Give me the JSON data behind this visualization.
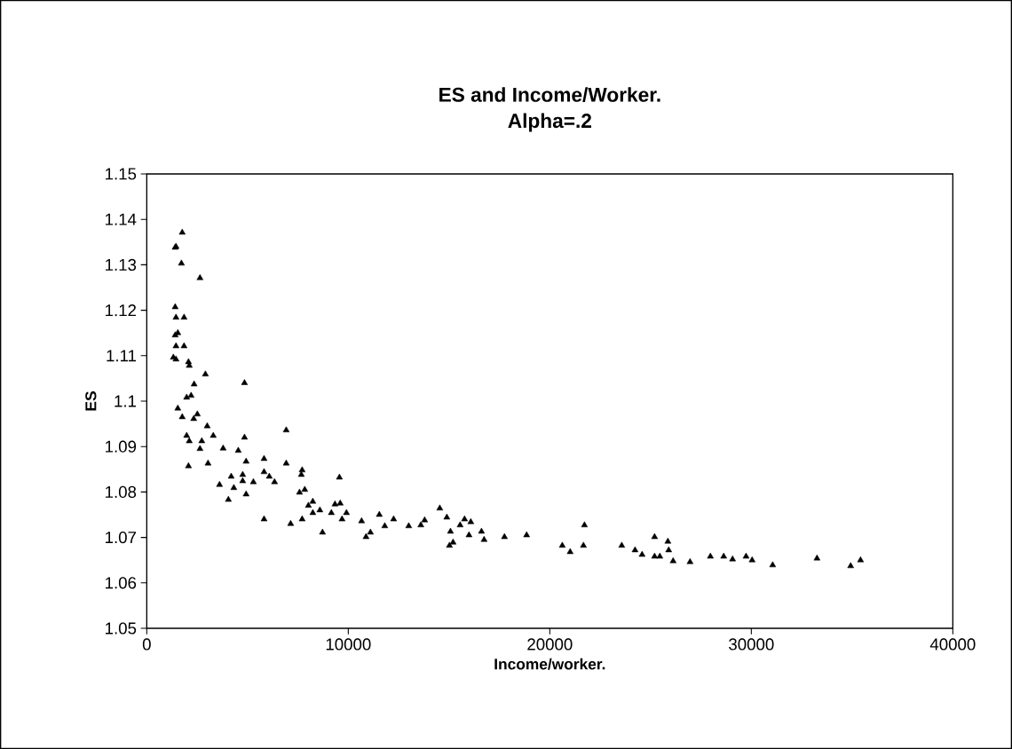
{
  "chart_data": {
    "type": "scatter",
    "title": "ES and Income/Worker.",
    "subtitle": "Alpha=.2",
    "xlabel": "Income/worker.",
    "ylabel": "ES",
    "marker": "triangle",
    "xlim": [
      0,
      40000
    ],
    "ylim": [
      1.05,
      1.15
    ],
    "xticks": [
      0,
      10000,
      20000,
      30000,
      40000
    ],
    "yticks": [
      1.05,
      1.06,
      1.07,
      1.08,
      1.09,
      {
        "value": 1.1,
        "label": "1.1"
      },
      1.11,
      1.12,
      1.13,
      1.14,
      1.15
    ],
    "series": [
      {
        "color": "#000000",
        "x": [
          1760,
          1450,
          1410,
          1720,
          2640,
          1410,
          1450,
          1850,
          1540,
          1410,
          1450,
          1850,
          1320,
          1450,
          2070,
          2110,
          2910,
          4850,
          2350,
          1980,
          2200,
          1540,
          1760,
          2510,
          2330,
          3000,
          1980,
          2730,
          2110,
          2640,
          3300,
          3790,
          4850,
          4540,
          6920,
          4930,
          5820,
          6920,
          2070,
          3040,
          5820,
          6080,
          6340,
          7710,
          7670,
          4190,
          4760,
          4760,
          5290,
          3610,
          4320,
          9560,
          7840,
          7580,
          4050,
          4930,
          8240,
          8020,
          8590,
          9340,
          9600,
          9160,
          9910,
          8240,
          9690,
          5820,
          7140,
          7710,
          10660,
          11540,
          12250,
          11810,
          11100,
          10880,
          8720,
          13000,
          13600,
          13790,
          14540,
          14890,
          15070,
          15200,
          15020,
          15550,
          15770,
          16080,
          15990,
          16610,
          16740,
          17750,
          18850,
          20620,
          21010,
          21670,
          21720,
          23570,
          24230,
          24580,
          25200,
          25200,
          25460,
          25860,
          25900,
          26120,
          26960,
          27970,
          28630,
          29070,
          29740,
          30040,
          31060,
          33260,
          34930,
          35420
        ],
        "values": [
          1.1371,
          1.134,
          1.1338,
          1.1303,
          1.1271,
          1.1207,
          1.1184,
          1.1184,
          1.115,
          1.1145,
          1.1121,
          1.1121,
          1.1096,
          1.1092,
          1.1086,
          1.1078,
          1.1059,
          1.104,
          1.1037,
          1.1008,
          1.1012,
          1.0984,
          1.0965,
          1.0971,
          1.0961,
          1.0945,
          1.0924,
          1.0912,
          1.0912,
          1.0895,
          1.0924,
          1.0896,
          1.092,
          1.0891,
          1.0936,
          1.0867,
          1.0873,
          1.0863,
          1.0857,
          1.0863,
          1.0844,
          1.0834,
          1.0822,
          1.0848,
          1.0838,
          1.0834,
          1.0838,
          1.0824,
          1.0822,
          1.0816,
          1.0809,
          1.0832,
          1.0805,
          1.0799,
          1.0783,
          1.0795,
          1.0779,
          1.077,
          1.076,
          1.0773,
          1.0775,
          1.0754,
          1.0754,
          1.0754,
          1.074,
          1.074,
          1.073,
          1.074,
          1.0736,
          1.075,
          1.074,
          1.0725,
          1.0711,
          1.0701,
          1.0711,
          1.0725,
          1.0727,
          1.0738,
          1.0764,
          1.0744,
          1.0713,
          1.0689,
          1.0682,
          1.0727,
          1.074,
          1.0734,
          1.0705,
          1.0713,
          1.0695,
          1.0701,
          1.0705,
          1.0682,
          1.0668,
          1.0682,
          1.0727,
          1.0682,
          1.0672,
          1.0662,
          1.0701,
          1.0658,
          1.0658,
          1.0691,
          1.0672,
          1.0648,
          1.0646,
          1.0658,
          1.0658,
          1.0652,
          1.0658,
          1.065,
          1.0639,
          1.0654,
          1.0637,
          1.065
        ]
      }
    ]
  }
}
